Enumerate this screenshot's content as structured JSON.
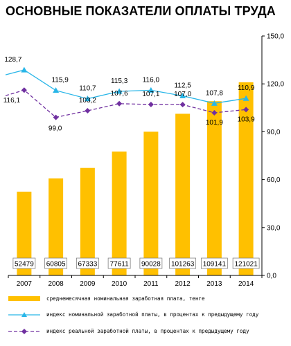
{
  "title": "ОСНОВНЫЕ ПОКАЗАТЕЛИ ОПЛАТЫ ТРУДА",
  "colors": {
    "bar": "#FFC000",
    "nominal_line": "#29B6E8",
    "real_line": "#7030A0"
  },
  "chart_data": {
    "type": "bar",
    "categories": [
      "2007",
      "2008",
      "2009",
      "2010",
      "2011",
      "2012",
      "2013",
      "2014"
    ],
    "ylim": [
      0,
      150
    ],
    "yticks": [
      "0,0",
      "30,0",
      "60,0",
      "90,0",
      "120,0",
      "150,0"
    ],
    "y_axis_position": "right",
    "grid": false,
    "legend_position": "bottom",
    "series": [
      {
        "name": "среднемесячная номинальная заработная плата, тенге",
        "type": "bar",
        "values": [
          52479,
          60805,
          67333,
          77611,
          90028,
          101263,
          109141,
          121021
        ],
        "data_labels": [
          "52479",
          "60805",
          "67333",
          "77611",
          "90028",
          "101263",
          "109141",
          "121021"
        ],
        "axis_scale_note": "bar heights shown in thousands of tenge on the 0–150 axis"
      },
      {
        "name": "индекс номинальной заработной платы, в процентах к предыдущему году",
        "type": "line",
        "marker": "triangle",
        "values": [
          128.7,
          115.9,
          110.7,
          115.3,
          116.0,
          112.5,
          107.8,
          110.9
        ],
        "data_labels": [
          "128,7",
          "115,9",
          "110,7",
          "115,3",
          "116,0",
          "112,5",
          "107,8",
          "110,9"
        ]
      },
      {
        "name": "индекс реальной заработной платы, в процентах к предыдущему году",
        "type": "line",
        "style": "dashed",
        "marker": "diamond",
        "values": [
          116.1,
          99.0,
          103.2,
          107.6,
          107.1,
          107.0,
          101.9,
          103.9
        ],
        "data_labels": [
          "116,1",
          "99,0",
          "103,2",
          "107,6",
          "107,1",
          "107,0",
          "101,9",
          "103,9"
        ]
      }
    ]
  },
  "legend": {
    "items": [
      {
        "key": "bar",
        "label": "среднемесячная номинальная заработная плата, тенге"
      },
      {
        "key": "nominal",
        "label": "индекс номинальной заработной платы, в процентах к предыдущему году"
      },
      {
        "key": "real",
        "label": "индекс реальной заработной платы, в процентах к предыдущему году"
      }
    ]
  }
}
